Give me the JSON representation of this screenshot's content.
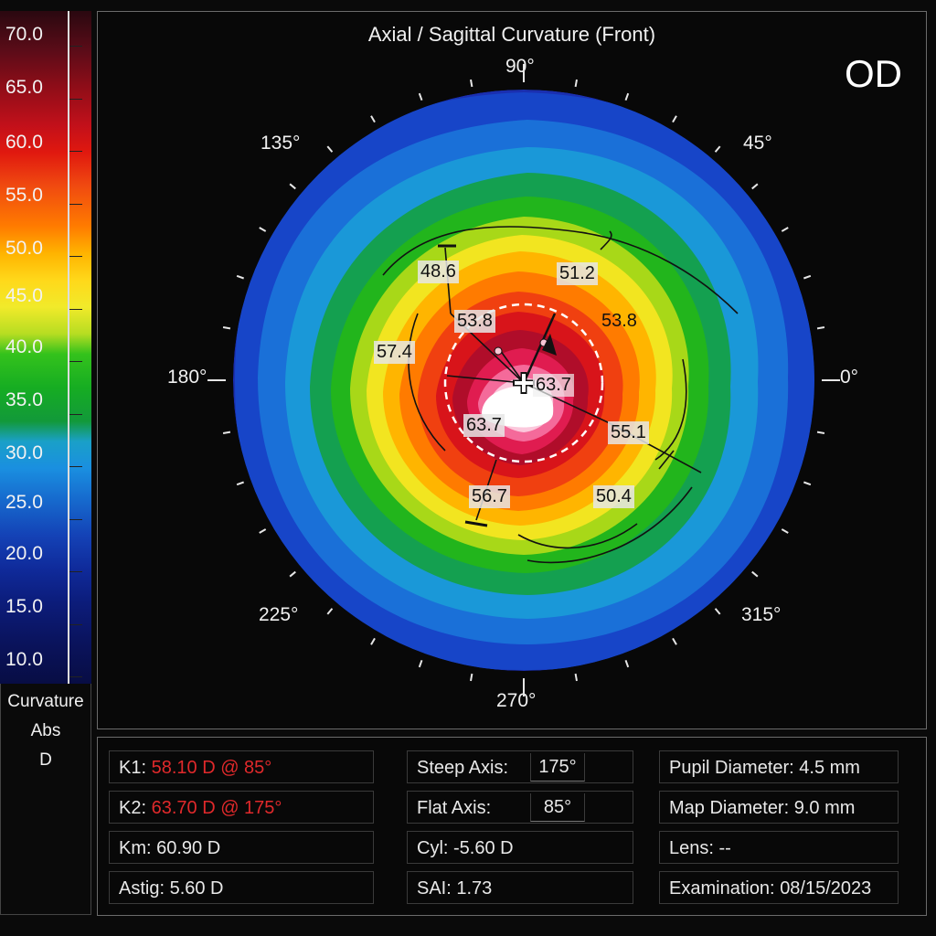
{
  "scale": {
    "labels": [
      "70.0",
      "65.0",
      "60.0",
      "55.0",
      "50.0",
      "45.0",
      "40.0",
      "35.0",
      "30.0",
      "25.0",
      "20.0",
      "15.0",
      "10.0"
    ],
    "caption": [
      "Curvature",
      "Abs",
      "D"
    ]
  },
  "map": {
    "title": "Axial / Sagittal Curvature (Front)",
    "eye": "OD",
    "degrees": {
      "d90": "90°",
      "d45": "45°",
      "d135": "135°",
      "d180": "180°",
      "d0": "0°",
      "d225": "225°",
      "d315": "315°",
      "d270": "270°"
    },
    "readings": [
      "48.6",
      "51.2",
      "53.8",
      "53.8",
      "57.4",
      "63.7",
      "63.7",
      "55.1",
      "56.7",
      "50.4"
    ]
  },
  "info": {
    "k1_label": "K1:",
    "k1_value": "58.10 D @ 85°",
    "k2_label": "K2:",
    "k2_value": "63.70 D @ 175°",
    "km": "Km: 60.90 D",
    "astig": "Astig: 5.60 D",
    "steep_label": "Steep Axis:",
    "steep_value": "175°",
    "flat_label": "Flat Axis:",
    "flat_value": "85°",
    "cyl_label": "Cyl:",
    "cyl_value": "-5.60 D",
    "sai_label": "SAI:",
    "sai_value": "1.73",
    "pupil_label": "Pupil Diameter:",
    "pupil_value": "4.5 mm",
    "mapd_label": "Map Diameter:",
    "mapd_value": "9.0 mm",
    "lens_label": "Lens:",
    "lens_value": "--",
    "exam_label": "Examination:",
    "exam_value": "08/15/2023"
  },
  "colors": {
    "scale": [
      "#3a0a12",
      "#7a0d1a",
      "#c0111a",
      "#f1260f",
      "#ff6a00",
      "#ffb300",
      "#f2e21a",
      "#b9e61a",
      "#19b41e",
      "#1aa04a",
      "#19a0d6",
      "#1566c8",
      "#1131a8",
      "#0d1a78",
      "#0a1150"
    ]
  }
}
